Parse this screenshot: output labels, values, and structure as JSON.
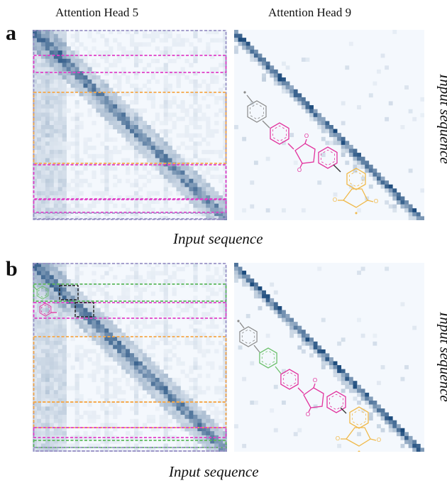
{
  "titles": {
    "left": "Attention Head 5",
    "right": "Attention Head 9"
  },
  "panels": [
    {
      "letter": "a",
      "axis_label_bottom": "Input sequence",
      "axis_label_side": "Input sequence",
      "highlight_groups": [
        "lavender",
        "magenta",
        "orange",
        "magenta",
        "magenta",
        "lavender"
      ]
    },
    {
      "letter": "b",
      "axis_label_bottom": "Input sequence",
      "axis_label_side": "Input sequence",
      "highlight_groups": [
        "lavender",
        "green",
        "magenta",
        "orange",
        "orange",
        "magenta",
        "green",
        "lavender"
      ]
    }
  ],
  "colors": {
    "heat_low": "#f4f8fd",
    "heat_high": "#0b3d72",
    "lavender": "#9a93c6",
    "magenta": "#e040c8",
    "orange": "#f5a84a",
    "green": "#5cb85c",
    "black_box": "#222222",
    "molecule_gray": "#8a8a8a",
    "molecule_pink": "#e2339e",
    "molecule_green": "#6cc16c",
    "molecule_orange": "#f0b94a"
  }
}
